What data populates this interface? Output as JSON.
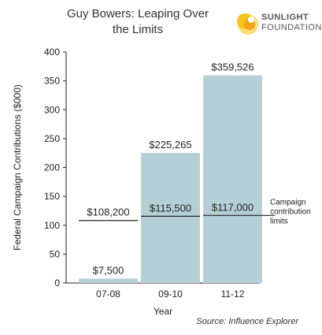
{
  "header": {
    "title_line1": "Guy Bowers: Leaping Over",
    "title_line2": "the Limits"
  },
  "logo": {
    "line1": "SUNLIGHT",
    "line2": "FOUNDATION",
    "colors": [
      "#f7c51e",
      "#f6a31a",
      "#fbe07a"
    ]
  },
  "source": "Source: Influence Explorer",
  "colors": {
    "bar": "#b4cfd6",
    "line": "#222222",
    "axis": "#222222"
  },
  "chart_data": {
    "type": "bar",
    "categories": [
      "07-08",
      "09-10",
      "11-12"
    ],
    "values": [
      7.5,
      225.265,
      359.526
    ],
    "value_labels": [
      "$7,500",
      "$225,265",
      "$359,526"
    ],
    "ylim": [
      0,
      400
    ],
    "yticks": [
      0,
      50,
      100,
      150,
      200,
      250,
      300,
      350,
      400
    ],
    "xlabel": "Year",
    "ylabel": "Federal Campaign Contributions ($000)",
    "grid": false,
    "limits": {
      "values": [
        108.2,
        115.5,
        117.0
      ],
      "labels": [
        "$108,200",
        "$115,500",
        "$117,000"
      ],
      "annotation": [
        "Campaign",
        "contribution",
        "limits"
      ]
    }
  }
}
